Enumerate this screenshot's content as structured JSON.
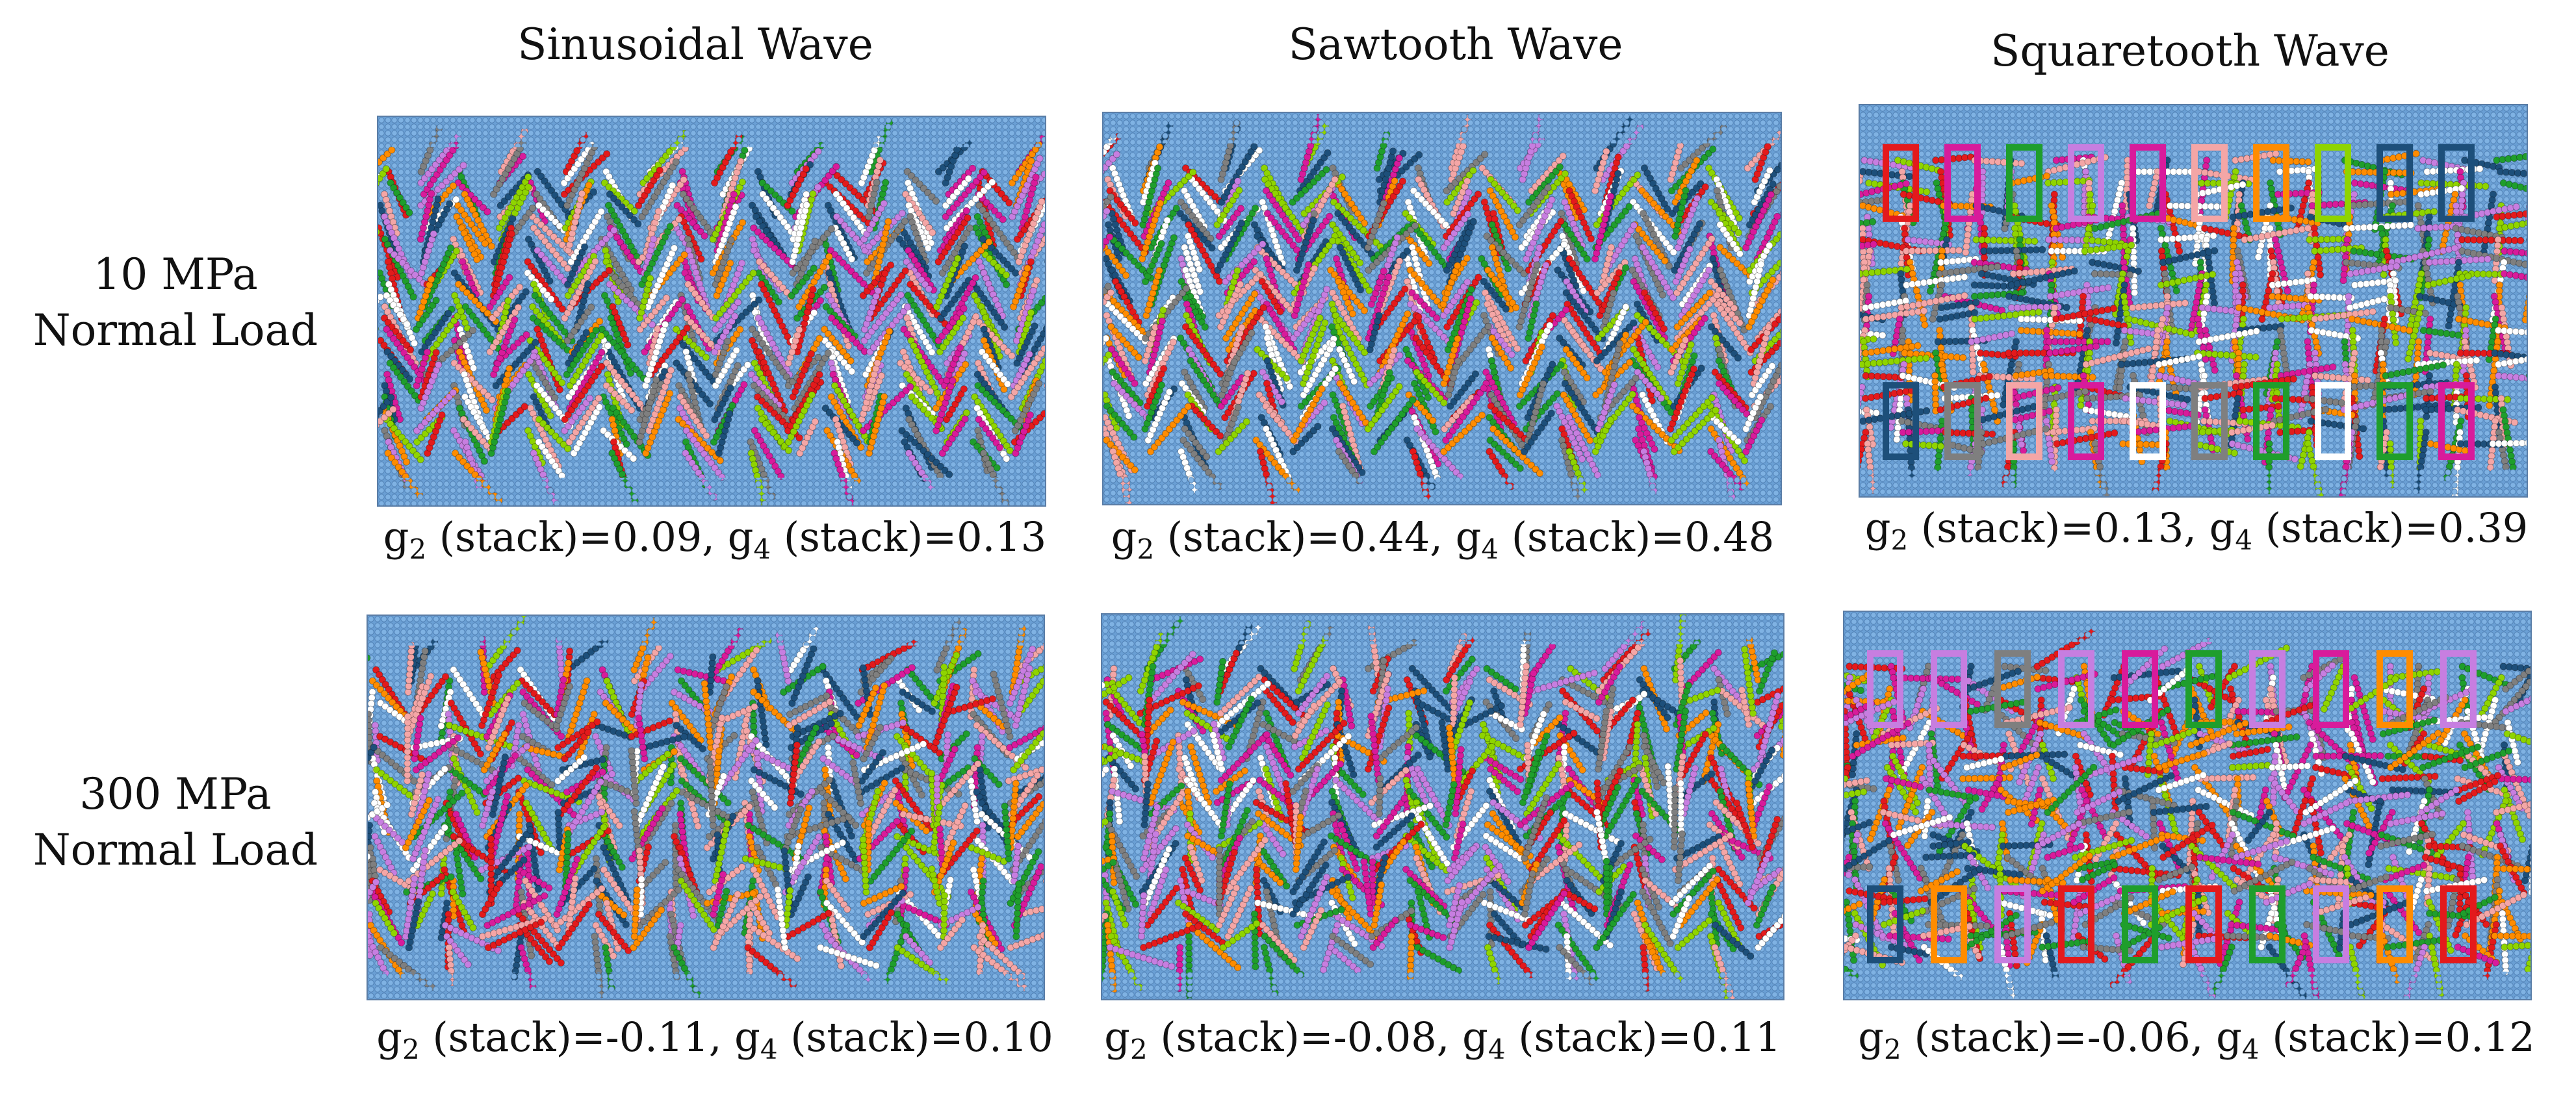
{
  "columns": [
    {
      "title": "Sinusoidal Wave",
      "shape": "sinusoidal"
    },
    {
      "title": "Sawtooth Wave",
      "shape": "sawtooth"
    },
    {
      "title": "Squaretooth Wave",
      "shape": "squaretooth"
    }
  ],
  "rows": [
    {
      "label_line1": "10 MPa",
      "label_line2": "Normal Load"
    },
    {
      "label_line1": "300 MPa",
      "label_line2": "Normal Load"
    }
  ],
  "captions": [
    [
      {
        "g2_prefix": "g",
        "g2_sub": "2",
        "g2_text": " (stack)=0.09, ",
        "g4_prefix": "g",
        "g4_sub": "4",
        "g4_text": " (stack)=0.13"
      },
      {
        "g2_prefix": "g",
        "g2_sub": "2",
        "g2_text": " (stack)=0.44, ",
        "g4_prefix": "g",
        "g4_sub": "4",
        "g4_text": " (stack)=0.48"
      },
      {
        "g2_prefix": "g",
        "g2_sub": "2",
        "g2_text": " (stack)=0.13, ",
        "g4_prefix": "g",
        "g4_sub": "4",
        "g4_text": " (stack)=0.39"
      }
    ],
    [
      {
        "g2_prefix": "g",
        "g2_sub": "2",
        "g2_text": " (stack)=-0.11, ",
        "g4_prefix": "g",
        "g4_sub": "4",
        "g4_text": " (stack)=0.10"
      },
      {
        "g2_prefix": "g",
        "g2_sub": "2",
        "g2_text": " (stack)=-0.08, ",
        "g4_prefix": "g",
        "g4_sub": "4",
        "g4_text": " (stack)=0.11"
      },
      {
        "g2_prefix": "g",
        "g2_sub": "2",
        "g2_text": " (stack)=-0.06, ",
        "g4_prefix": "g",
        "g4_sub": "4",
        "g4_text": " (stack)=0.12"
      }
    ]
  ],
  "colors": {
    "substrate": "#6a9fd4",
    "substrate_edge": "#4f7fb3",
    "molecules": [
      "#e31a1c",
      "#ff8c00",
      "#1f9e2c",
      "#d81b9b",
      "#7f7f7f",
      "#8fd400",
      "#ffffff",
      "#1d4f7a",
      "#f4a6a6",
      "#c77ee0"
    ]
  }
}
